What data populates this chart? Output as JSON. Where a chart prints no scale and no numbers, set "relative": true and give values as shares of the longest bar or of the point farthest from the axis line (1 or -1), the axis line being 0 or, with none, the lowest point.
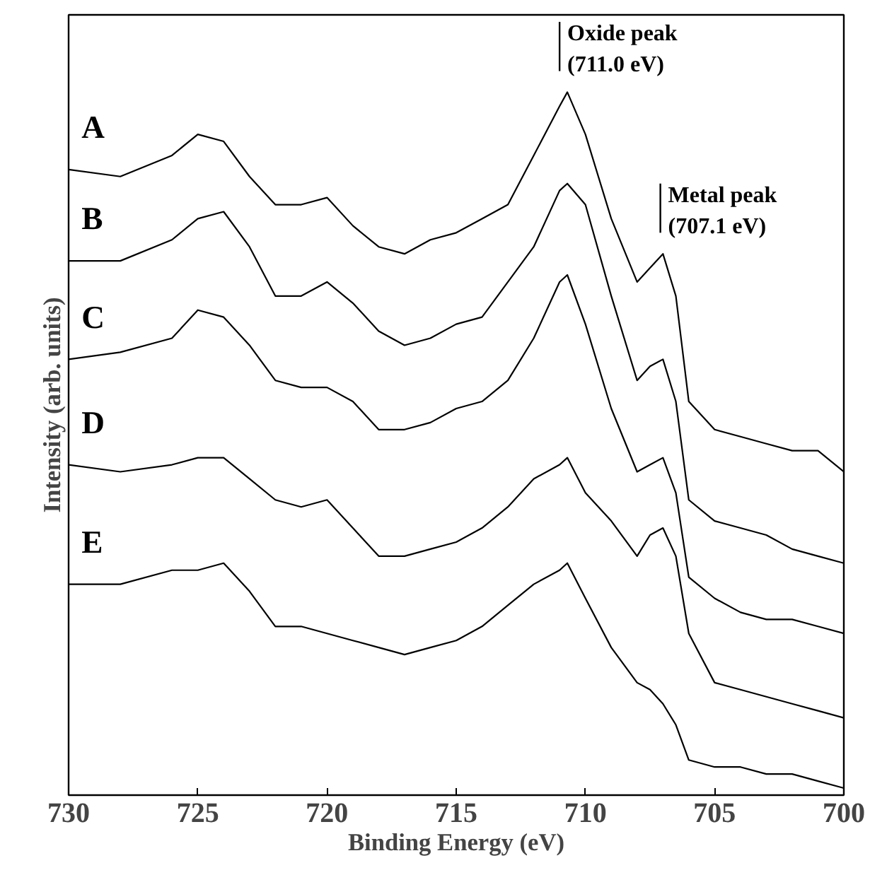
{
  "chart_data": {
    "type": "line",
    "relative": true,
    "xlabel": "Binding Energy (eV)",
    "ylabel": "Intensity (arb. units)",
    "xlim": [
      730,
      700
    ],
    "xticks": [
      730,
      725,
      720,
      715,
      710,
      705,
      700
    ],
    "grid": false,
    "legend": false,
    "marker": "none",
    "line_style": "solid",
    "x": [
      730,
      728,
      726,
      725,
      724,
      723,
      722,
      721,
      720,
      719,
      718,
      717,
      716,
      715,
      714,
      713,
      712,
      711,
      710.7,
      710,
      709,
      708,
      707.5,
      707,
      706.5,
      706,
      705,
      704,
      703,
      702,
      701,
      700
    ],
    "series": [
      {
        "name": "A",
        "color": "#000000",
        "values": [
          0.89,
          0.88,
          0.91,
          0.94,
          0.93,
          0.88,
          0.84,
          0.84,
          0.85,
          0.81,
          0.78,
          0.77,
          0.79,
          0.8,
          0.82,
          0.84,
          0.91,
          0.98,
          1.0,
          0.94,
          0.82,
          0.73,
          0.75,
          0.77,
          0.71,
          0.56,
          0.52,
          0.51,
          0.5,
          0.49,
          0.49,
          0.46
        ]
      },
      {
        "name": "B",
        "color": "#000000",
        "values": [
          0.76,
          0.76,
          0.79,
          0.82,
          0.83,
          0.78,
          0.71,
          0.71,
          0.73,
          0.7,
          0.66,
          0.64,
          0.65,
          0.67,
          0.68,
          0.73,
          0.78,
          0.86,
          0.87,
          0.84,
          0.71,
          0.59,
          0.61,
          0.62,
          0.56,
          0.42,
          0.39,
          0.38,
          0.37,
          0.35,
          0.34,
          0.33
        ]
      },
      {
        "name": "C",
        "color": "#000000",
        "values": [
          0.62,
          0.63,
          0.65,
          0.69,
          0.68,
          0.64,
          0.59,
          0.58,
          0.58,
          0.56,
          0.52,
          0.52,
          0.53,
          0.55,
          0.56,
          0.59,
          0.65,
          0.73,
          0.74,
          0.67,
          0.55,
          0.46,
          0.47,
          0.48,
          0.43,
          0.31,
          0.28,
          0.26,
          0.25,
          0.25,
          0.24,
          0.23
        ]
      },
      {
        "name": "D",
        "color": "#000000",
        "values": [
          0.47,
          0.46,
          0.47,
          0.48,
          0.48,
          0.45,
          0.42,
          0.41,
          0.42,
          0.38,
          0.34,
          0.34,
          0.35,
          0.36,
          0.38,
          0.41,
          0.45,
          0.47,
          0.48,
          0.43,
          0.39,
          0.34,
          0.37,
          0.38,
          0.34,
          0.23,
          0.16,
          0.15,
          0.14,
          0.13,
          0.12,
          0.11
        ]
      },
      {
        "name": "E",
        "color": "#000000",
        "values": [
          0.3,
          0.3,
          0.32,
          0.32,
          0.33,
          0.29,
          0.24,
          0.24,
          0.23,
          0.22,
          0.21,
          0.2,
          0.21,
          0.22,
          0.24,
          0.27,
          0.3,
          0.32,
          0.33,
          0.28,
          0.21,
          0.16,
          0.15,
          0.13,
          0.1,
          0.05,
          0.04,
          0.04,
          0.03,
          0.03,
          0.02,
          0.01
        ]
      }
    ],
    "ref_lines": [
      {
        "axis": "x",
        "value": 711.0,
        "label": "Oxide peak\n(711.0 eV)"
      },
      {
        "axis": "x",
        "value": 707.1,
        "label": "Metal peak\n(707.1 eV)"
      }
    ]
  }
}
